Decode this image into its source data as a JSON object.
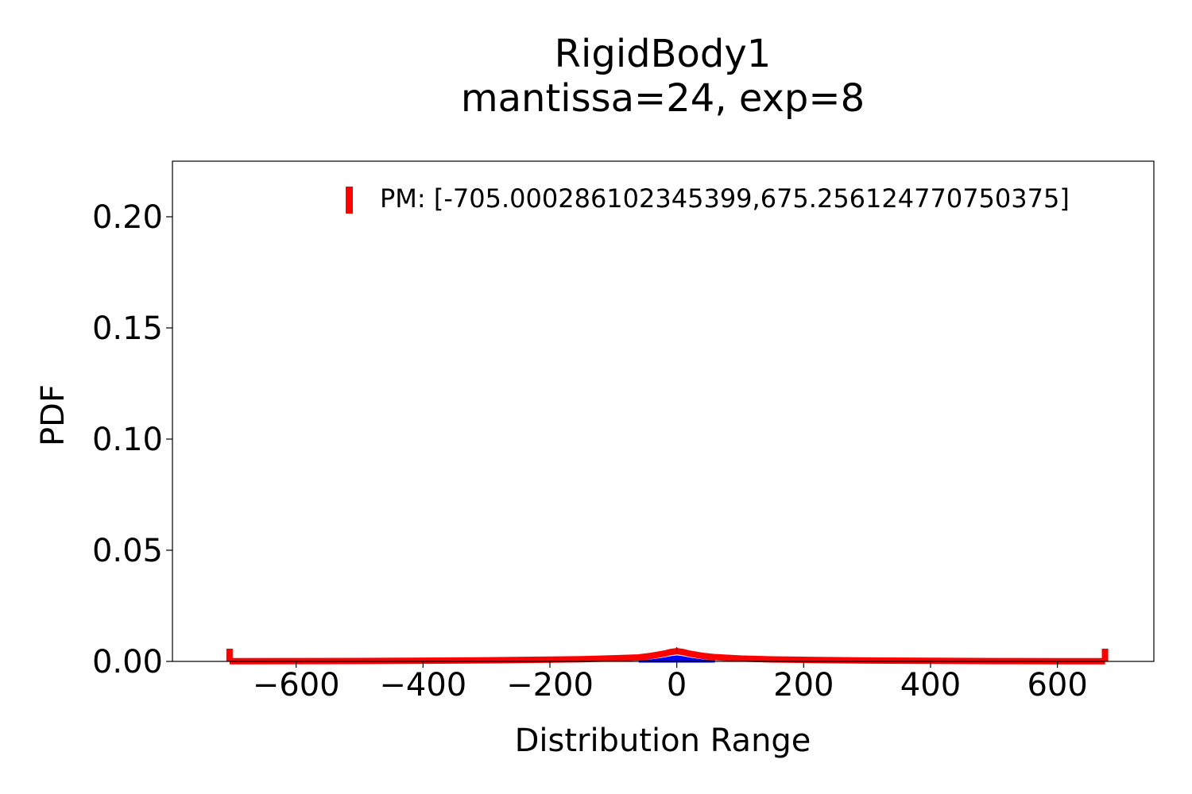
{
  "chart_data": {
    "type": "line",
    "title": "RigidBody1",
    "subtitle": "mantissa=24, exp=8",
    "xlabel": "Distribution Range",
    "ylabel": "PDF",
    "xlim": [
      -795,
      752
    ],
    "ylim": [
      0,
      0.225
    ],
    "x_ticks": [
      -600,
      -400,
      -200,
      0,
      200,
      400,
      600
    ],
    "x_tick_labels": [
      "−600",
      "−400",
      "−200",
      "0",
      "200",
      "400",
      "600"
    ],
    "y_ticks": [
      0.0,
      0.05,
      0.1,
      0.15,
      0.2
    ],
    "y_tick_labels": [
      "0.00",
      "0.05",
      "0.10",
      "0.15",
      "0.20"
    ],
    "grid": false,
    "legend_position": "top-right",
    "series": [
      {
        "name": "PM: [-705.000286102345399,675.256124770750375]",
        "color": "#ff0000",
        "x": [
          -705,
          -600,
          -500,
          -400,
          -300,
          -200,
          -150,
          -100,
          -60,
          -40,
          -20,
          -10,
          0,
          10,
          20,
          40,
          60,
          100,
          150,
          200,
          300,
          400,
          500,
          600,
          675
        ],
        "y": [
          0.0001,
          0.00015,
          0.0002,
          0.0003,
          0.0005,
          0.0008,
          0.001,
          0.0014,
          0.0018,
          0.0025,
          0.0035,
          0.0042,
          0.0046,
          0.0042,
          0.0035,
          0.0025,
          0.0019,
          0.0013,
          0.0009,
          0.0007,
          0.0004,
          0.00025,
          0.00015,
          0.0001,
          0.0001
        ]
      },
      {
        "color": "#0000ff",
        "x": [
          -60,
          -40,
          -20,
          -10,
          0,
          10,
          20,
          40,
          60
        ],
        "y": [
          0.0,
          0.0004,
          0.0012,
          0.0018,
          0.0022,
          0.0018,
          0.0012,
          0.0004,
          0.0
        ]
      }
    ],
    "range_markers": [
      -705,
      675
    ]
  }
}
